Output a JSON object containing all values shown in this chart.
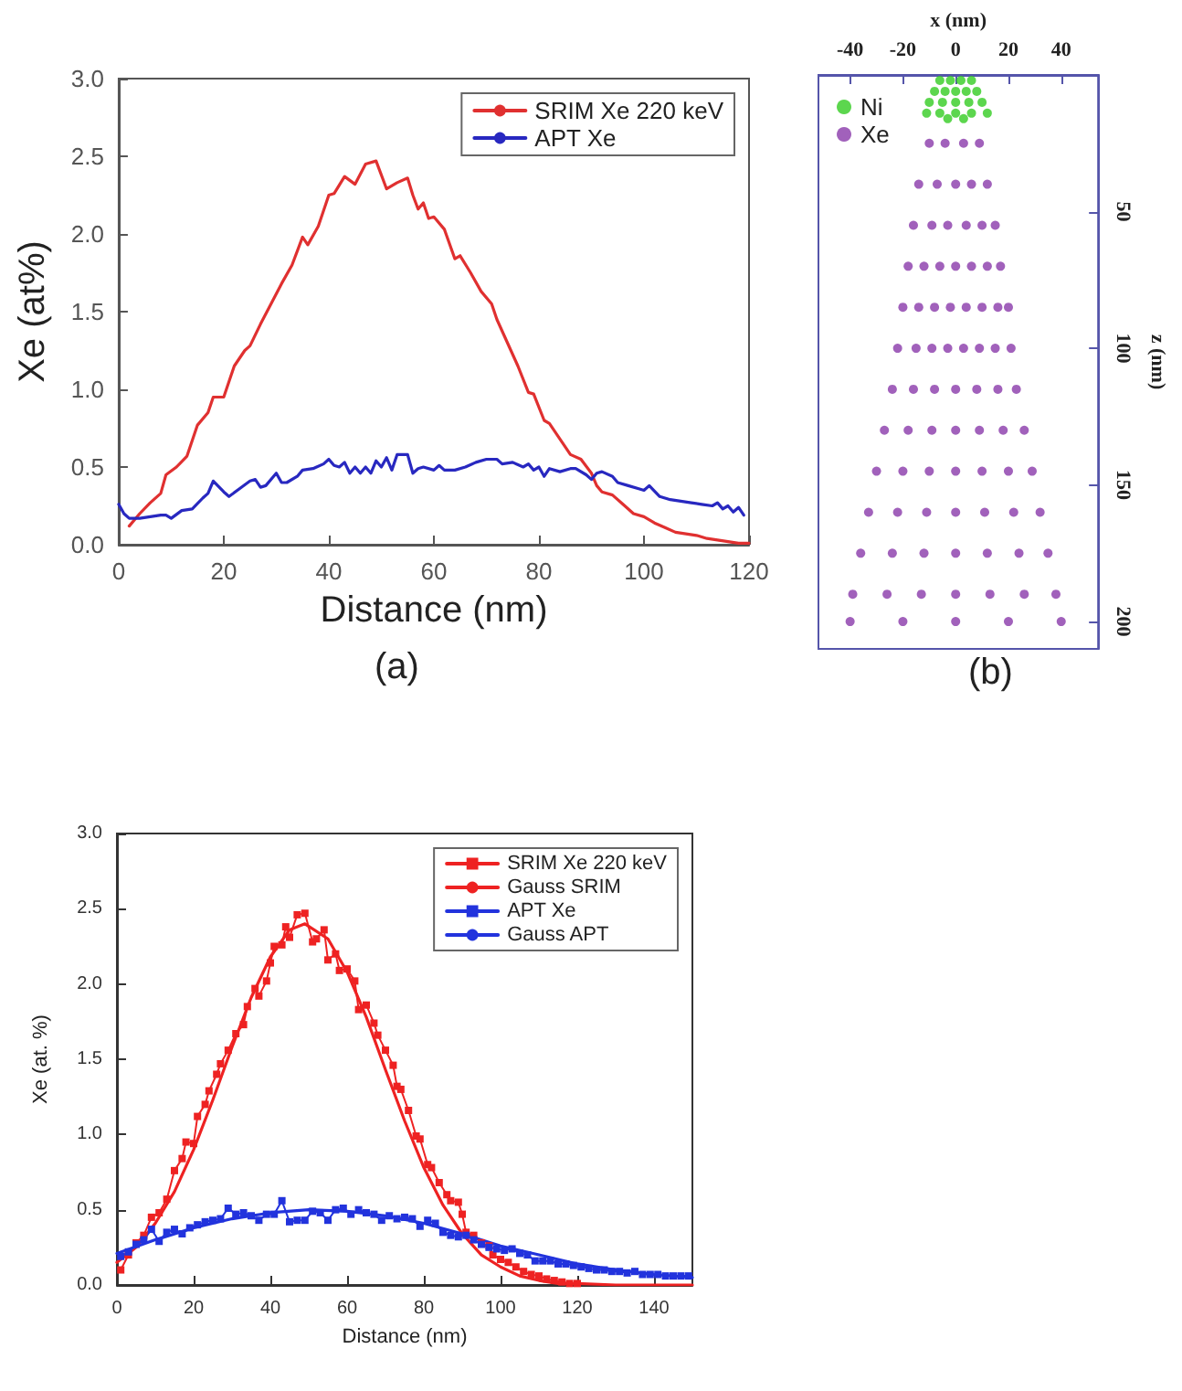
{
  "chart_data": [
    {
      "type": "line",
      "xlabel": "Distance (nm)",
      "ylabel": "Xe (at%)",
      "annotations": [
        "(a)"
      ],
      "xlim": [
        0,
        120
      ],
      "xticks": [
        0,
        20,
        40,
        60,
        80,
        100,
        120
      ],
      "ylim": [
        0,
        3
      ],
      "yticks": [
        {
          "value": 0,
          "label": "0.0"
        },
        0.5,
        {
          "value": 1,
          "label": "1.0"
        },
        1.5,
        {
          "value": 2,
          "label": "2.0"
        },
        2.5,
        {
          "value": 3,
          "label": "3.0"
        }
      ],
      "grid": false,
      "legend": "top right",
      "marker": "none",
      "line_style": "solid",
      "series": [
        {
          "name": "SRIM Xe 220 keV",
          "color": "#e03030",
          "x": [
            2,
            4,
            6,
            8,
            9,
            11,
            13,
            15,
            17,
            18,
            20,
            22,
            24,
            25,
            27,
            29,
            31,
            33,
            35,
            36,
            38,
            40,
            41,
            43,
            45,
            47,
            49,
            51,
            53,
            55,
            56,
            57,
            58,
            59,
            60,
            62,
            64,
            65,
            67,
            69,
            71,
            72,
            74,
            76,
            78,
            79,
            81,
            82,
            84,
            86,
            88,
            90,
            91,
            92,
            94,
            96,
            98,
            100,
            102,
            104,
            106,
            108,
            110,
            112,
            114,
            116,
            118,
            120
          ],
          "values": [
            0.12,
            0.2,
            0.27,
            0.33,
            0.45,
            0.5,
            0.57,
            0.77,
            0.85,
            0.95,
            0.95,
            1.15,
            1.25,
            1.28,
            1.42,
            1.55,
            1.68,
            1.8,
            1.98,
            1.93,
            2.05,
            2.25,
            2.26,
            2.37,
            2.32,
            2.45,
            2.47,
            2.29,
            2.33,
            2.36,
            2.25,
            2.16,
            2.2,
            2.1,
            2.11,
            2.03,
            1.84,
            1.86,
            1.75,
            1.63,
            1.55,
            1.45,
            1.3,
            1.15,
            0.98,
            0.97,
            0.8,
            0.78,
            0.68,
            0.58,
            0.55,
            0.46,
            0.38,
            0.34,
            0.32,
            0.26,
            0.2,
            0.18,
            0.14,
            0.11,
            0.08,
            0.07,
            0.06,
            0.04,
            0.03,
            0.02,
            0.01,
            0.01
          ]
        },
        {
          "name": "APT Xe",
          "color": "#2828c0",
          "x": [
            0,
            1,
            2,
            4,
            6,
            8,
            9,
            10,
            12,
            14,
            16,
            17,
            18,
            20,
            21,
            23,
            25,
            26,
            27,
            28,
            30,
            31,
            32,
            34,
            35,
            37,
            39,
            40,
            41,
            42,
            43,
            44,
            45,
            46,
            47,
            48,
            49,
            50,
            51,
            52,
            53,
            55,
            56,
            57,
            58,
            60,
            61,
            62,
            64,
            66,
            68,
            70,
            72,
            73,
            75,
            77,
            78,
            79,
            80,
            81,
            82,
            84,
            86,
            87,
            89,
            90,
            91,
            92,
            94,
            95,
            97,
            99,
            100,
            101,
            103,
            105,
            107,
            109,
            111,
            113,
            114,
            115,
            116,
            117,
            118,
            119
          ],
          "values": [
            0.26,
            0.2,
            0.17,
            0.17,
            0.18,
            0.19,
            0.19,
            0.17,
            0.22,
            0.23,
            0.3,
            0.33,
            0.41,
            0.34,
            0.31,
            0.36,
            0.41,
            0.42,
            0.37,
            0.38,
            0.46,
            0.4,
            0.4,
            0.44,
            0.48,
            0.49,
            0.52,
            0.55,
            0.51,
            0.5,
            0.53,
            0.46,
            0.5,
            0.46,
            0.5,
            0.46,
            0.54,
            0.5,
            0.56,
            0.48,
            0.58,
            0.58,
            0.46,
            0.49,
            0.5,
            0.48,
            0.51,
            0.48,
            0.48,
            0.5,
            0.53,
            0.55,
            0.55,
            0.52,
            0.53,
            0.5,
            0.52,
            0.48,
            0.5,
            0.44,
            0.49,
            0.47,
            0.49,
            0.49,
            0.45,
            0.42,
            0.46,
            0.47,
            0.44,
            0.4,
            0.38,
            0.36,
            0.35,
            0.38,
            0.31,
            0.29,
            0.28,
            0.27,
            0.26,
            0.25,
            0.27,
            0.23,
            0.25,
            0.21,
            0.24,
            0.19
          ]
        }
      ]
    },
    {
      "type": "scatter",
      "xlabel": "x (nm)",
      "ylabel": "z (nm)",
      "annotations": [
        "(b)"
      ],
      "xlim": [
        -52,
        54
      ],
      "xticks": [
        -40,
        -20,
        0,
        20,
        40
      ],
      "ylim": [
        210,
        0
      ],
      "yticks": [
        50,
        100,
        150,
        200
      ],
      "grid": false,
      "legend": "top left",
      "marker": "circle",
      "series": [
        {
          "name": "Ni",
          "color": "#33cc22",
          "x": [
            -6,
            -2,
            2,
            6,
            -8,
            -4,
            0,
            4,
            8,
            -10,
            -5,
            0,
            5,
            10,
            -11,
            -6,
            0,
            6,
            12,
            -3,
            3
          ],
          "values": [
            2,
            2,
            2,
            2,
            6,
            6,
            6,
            6,
            6,
            10,
            10,
            10,
            10,
            10,
            14,
            14,
            14,
            14,
            14,
            16,
            16
          ]
        },
        {
          "name": "Xe",
          "color": "#8a3aaa",
          "x": [
            -10,
            -4,
            3,
            9,
            -14,
            -7,
            0,
            6,
            12,
            -16,
            -9,
            -3,
            4,
            10,
            15,
            -18,
            -12,
            -6,
            0,
            6,
            12,
            17,
            -20,
            -14,
            -8,
            -2,
            4,
            10,
            16,
            20,
            -22,
            -15,
            -9,
            -3,
            3,
            9,
            15,
            21,
            -24,
            -16,
            -8,
            0,
            8,
            16,
            23,
            -27,
            -18,
            -9,
            0,
            9,
            18,
            26,
            -30,
            -20,
            -10,
            0,
            10,
            20,
            29,
            -33,
            -22,
            -11,
            0,
            11,
            22,
            32,
            -36,
            -24,
            -12,
            0,
            12,
            24,
            35,
            -39,
            -26,
            -13,
            0,
            13,
            26,
            38,
            -40,
            -20,
            0,
            20,
            40
          ],
          "values": [
            25,
            25,
            25,
            25,
            40,
            40,
            40,
            40,
            40,
            55,
            55,
            55,
            55,
            55,
            55,
            70,
            70,
            70,
            70,
            70,
            70,
            70,
            85,
            85,
            85,
            85,
            85,
            85,
            85,
            85,
            100,
            100,
            100,
            100,
            100,
            100,
            100,
            100,
            115,
            115,
            115,
            115,
            115,
            115,
            115,
            130,
            130,
            130,
            130,
            130,
            130,
            130,
            145,
            145,
            145,
            145,
            145,
            145,
            145,
            160,
            160,
            160,
            160,
            160,
            160,
            160,
            175,
            175,
            175,
            175,
            175,
            175,
            175,
            190,
            190,
            190,
            190,
            190,
            190,
            190,
            200,
            200,
            200,
            200,
            200
          ]
        }
      ]
    },
    {
      "type": "line",
      "xlabel": "Distance (nm)",
      "ylabel": "Xe (at. %)",
      "xlim": [
        0,
        150
      ],
      "xticks": [
        0,
        20,
        40,
        60,
        80,
        100,
        120,
        140
      ],
      "ylim": [
        0,
        3
      ],
      "yticks": [
        {
          "value": 0,
          "label": "0.0"
        },
        0.5,
        {
          "value": 1,
          "label": "1.0"
        },
        1.5,
        {
          "value": 2,
          "label": "2.0"
        },
        2.5,
        {
          "value": 3,
          "label": "3.0"
        }
      ],
      "grid": false,
      "legend": "top right",
      "line_style": "solid",
      "series": [
        {
          "name": "SRIM Xe 220 keV",
          "color": "#ee2222",
          "marker": "square",
          "x": [
            1,
            3,
            5,
            7,
            9,
            11,
            13,
            15,
            17,
            18,
            20,
            21,
            23,
            24,
            26,
            27,
            29,
            31,
            33,
            34,
            36,
            37,
            39,
            40,
            41,
            43,
            44,
            45,
            47,
            49,
            51,
            52,
            54,
            55,
            57,
            58,
            60,
            62,
            63,
            65,
            67,
            68,
            70,
            72,
            73,
            74,
            76,
            78,
            79,
            81,
            82,
            84,
            86,
            87,
            89,
            90,
            91,
            93,
            95,
            97,
            98,
            100,
            102,
            104,
            106,
            108,
            110,
            112,
            114,
            116,
            118,
            120
          ],
          "values": [
            0.1,
            0.2,
            0.28,
            0.33,
            0.45,
            0.48,
            0.57,
            0.76,
            0.84,
            0.95,
            0.94,
            1.12,
            1.2,
            1.29,
            1.4,
            1.47,
            1.56,
            1.67,
            1.73,
            1.85,
            1.97,
            1.92,
            2.02,
            2.14,
            2.25,
            2.26,
            2.38,
            2.31,
            2.46,
            2.47,
            2.28,
            2.3,
            2.36,
            2.16,
            2.2,
            2.09,
            2.1,
            2.02,
            1.83,
            1.86,
            1.74,
            1.66,
            1.56,
            1.46,
            1.32,
            1.3,
            1.16,
            0.99,
            0.97,
            0.8,
            0.78,
            0.68,
            0.6,
            0.56,
            0.55,
            0.47,
            0.35,
            0.33,
            0.28,
            0.26,
            0.2,
            0.17,
            0.15,
            0.12,
            0.09,
            0.07,
            0.06,
            0.04,
            0.03,
            0.02,
            0.01,
            0.01
          ]
        },
        {
          "name": "Gauss SRIM",
          "color": "#ee2222",
          "marker": "none",
          "x": [
            0,
            5,
            10,
            15,
            20,
            25,
            30,
            35,
            40,
            45,
            49,
            55,
            60,
            65,
            70,
            75,
            80,
            85,
            90,
            95,
            100,
            105,
            110,
            115,
            120,
            130,
            140,
            150
          ],
          "values": [
            0.15,
            0.25,
            0.41,
            0.62,
            0.9,
            1.23,
            1.58,
            1.91,
            2.18,
            2.36,
            2.4,
            2.3,
            2.08,
            1.78,
            1.43,
            1.09,
            0.78,
            0.53,
            0.34,
            0.2,
            0.12,
            0.06,
            0.03,
            0.01,
            0.01,
            0,
            0,
            0
          ]
        },
        {
          "name": "APT Xe",
          "color": "#2233dd",
          "marker": "square",
          "x": [
            1,
            3,
            5,
            7,
            9,
            11,
            13,
            15,
            17,
            19,
            21,
            23,
            25,
            27,
            29,
            31,
            33,
            35,
            37,
            39,
            41,
            43,
            45,
            47,
            49,
            51,
            53,
            55,
            57,
            59,
            61,
            63,
            65,
            67,
            69,
            71,
            73,
            75,
            77,
            79,
            81,
            83,
            85,
            87,
            89,
            91,
            93,
            95,
            97,
            99,
            101,
            103,
            105,
            107,
            109,
            111,
            113,
            115,
            117,
            119,
            121,
            123,
            125,
            127,
            129,
            131,
            133,
            135,
            137,
            139,
            141,
            143,
            145,
            147,
            149
          ],
          "values": [
            0.19,
            0.22,
            0.27,
            0.3,
            0.37,
            0.29,
            0.35,
            0.37,
            0.34,
            0.38,
            0.4,
            0.42,
            0.43,
            0.44,
            0.51,
            0.47,
            0.48,
            0.46,
            0.43,
            0.47,
            0.47,
            0.56,
            0.42,
            0.43,
            0.43,
            0.49,
            0.48,
            0.43,
            0.5,
            0.51,
            0.47,
            0.5,
            0.48,
            0.47,
            0.43,
            0.46,
            0.44,
            0.45,
            0.44,
            0.39,
            0.43,
            0.41,
            0.35,
            0.33,
            0.32,
            0.33,
            0.3,
            0.27,
            0.25,
            0.24,
            0.23,
            0.24,
            0.21,
            0.2,
            0.16,
            0.16,
            0.16,
            0.14,
            0.14,
            0.13,
            0.12,
            0.11,
            0.1,
            0.1,
            0.09,
            0.09,
            0.08,
            0.09,
            0.07,
            0.07,
            0.07,
            0.06,
            0.06,
            0.06,
            0.06
          ]
        },
        {
          "name": "Gauss APT",
          "color": "#2233dd",
          "marker": "none",
          "x": [
            0,
            10,
            20,
            30,
            40,
            50,
            60,
            70,
            80,
            90,
            100,
            110,
            120,
            130,
            140,
            150
          ],
          "values": [
            0.21,
            0.3,
            0.38,
            0.44,
            0.48,
            0.5,
            0.49,
            0.46,
            0.41,
            0.34,
            0.26,
            0.2,
            0.14,
            0.1,
            0.07,
            0.05
          ]
        }
      ]
    }
  ]
}
